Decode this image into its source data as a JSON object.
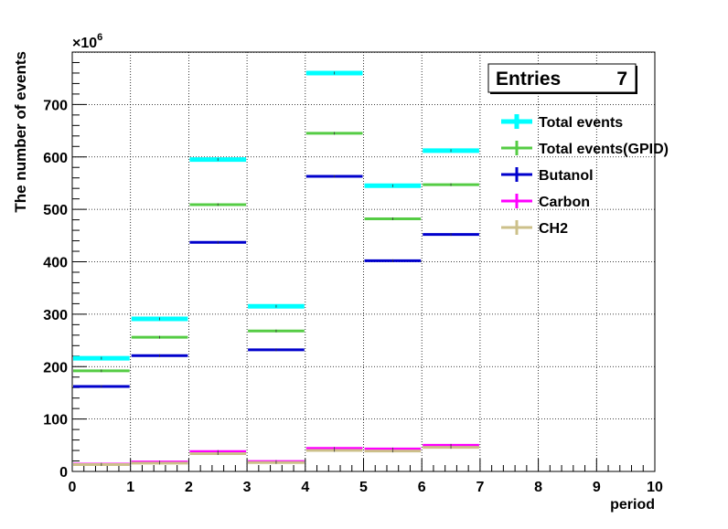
{
  "chart_data": {
    "type": "bar",
    "xlabel": "period",
    "ylabel": "The number of events",
    "y_exponent_label": "×10",
    "y_exponent_power": "6",
    "xlim": [
      0,
      10
    ],
    "ylim": [
      0,
      800
    ],
    "x_ticks": [
      "0",
      "1",
      "2",
      "3",
      "4",
      "5",
      "6",
      "7",
      "8",
      "9",
      "10"
    ],
    "y_ticks": [
      "0",
      "100",
      "200",
      "300",
      "400",
      "500",
      "600",
      "700"
    ],
    "grid": true,
    "legend_position": "top-right",
    "stats_box": {
      "label": "Entries",
      "value": "7"
    },
    "bin_edges": [
      0,
      1,
      2,
      3,
      4,
      5,
      6,
      7
    ],
    "series": [
      {
        "name": "Total events",
        "color": "#00ffff",
        "values": [
          216,
          291,
          595,
          315,
          760,
          545,
          612
        ]
      },
      {
        "name": "Total events(GPID)",
        "color": "#55cc44",
        "values": [
          192,
          256,
          509,
          268,
          645,
          482,
          547
        ]
      },
      {
        "name": "Butanol",
        "color": "#0000cc",
        "values": [
          162,
          221,
          437,
          232,
          563,
          402,
          452
        ]
      },
      {
        "name": "Carbon",
        "color": "#ff00ff",
        "values": [
          14,
          18,
          38,
          19,
          44,
          43,
          50
        ]
      },
      {
        "name": "CH2",
        "color": "#ccc08a",
        "values": [
          13,
          16,
          34,
          17,
          40,
          39,
          46
        ]
      }
    ]
  }
}
